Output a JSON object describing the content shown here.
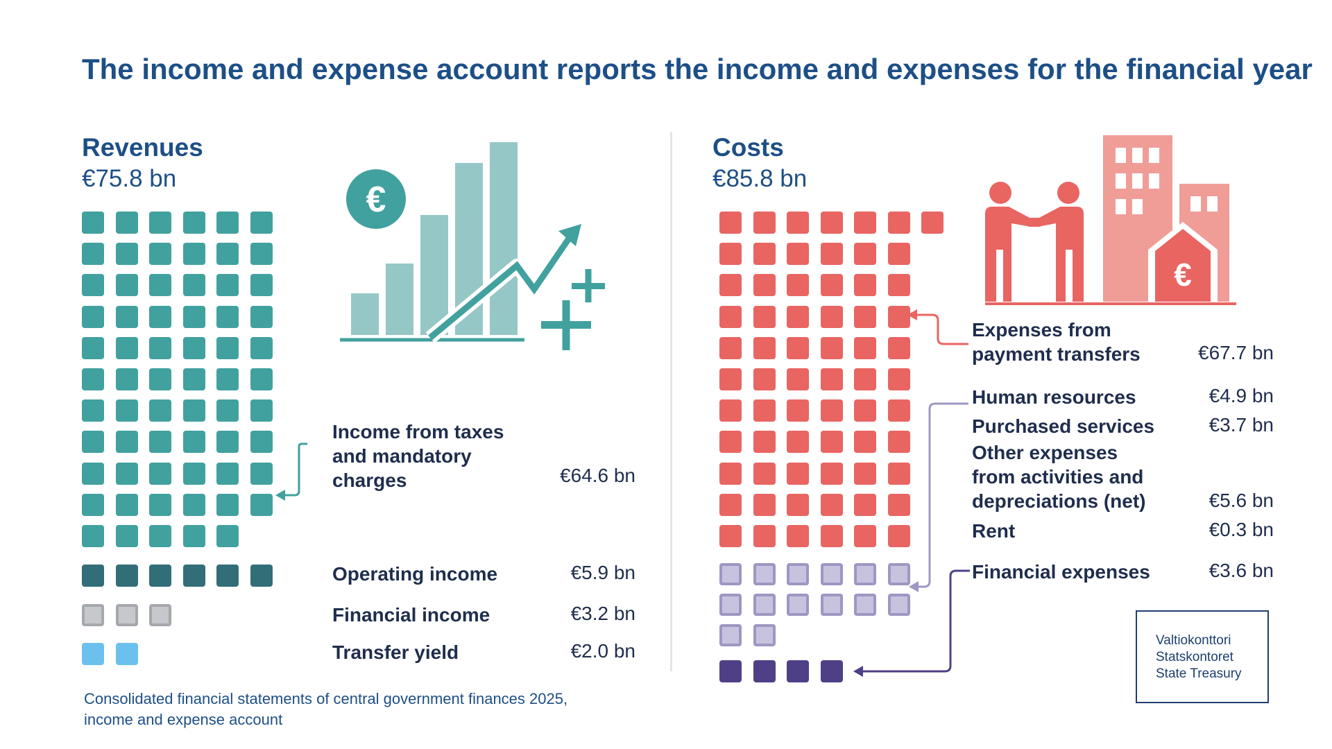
{
  "title": "The income and expense account reports the income and expenses for the financial year",
  "revenues": {
    "heading": "Revenues",
    "total": "€75.8  bn",
    "items": [
      {
        "label": "Income from taxes and mandatory charges",
        "label_lines": [
          "Income from taxes",
          "and mandatory",
          "charges"
        ],
        "value": "€64.6 bn",
        "squares": 65,
        "color": "#41a19e"
      },
      {
        "label": "Operating income",
        "value": "€5.9 bn",
        "squares": 6,
        "color": "#326e78"
      },
      {
        "label": "Financial income",
        "value": "€3.2 bn",
        "squares": 3,
        "color": "#a5a8ad"
      },
      {
        "label": "Transfer yield",
        "value": "€2.0 bn",
        "squares": 2,
        "color": "#6cc0ee"
      }
    ]
  },
  "costs": {
    "heading": "Costs",
    "total": "€85.8 bn",
    "items": [
      {
        "label": "Expenses from payment transfers",
        "label_lines": [
          "Expenses from",
          "payment transfers"
        ],
        "value": "€67.7 bn",
        "squares": 67,
        "color": "#e86562"
      },
      {
        "label": "Human resources",
        "value": "€4.9 bn",
        "color": "#b2aed0"
      },
      {
        "label": "Purchased services",
        "value": "€3.7 bn",
        "color": "#b2aed0"
      },
      {
        "label": "Other expenses from activities and depreciations (net)",
        "label_lines": [
          "Other expenses",
          "from activities and",
          "depreciations (net)"
        ],
        "value": "€5.6 bn",
        "color": "#b2aed0"
      },
      {
        "label": "Rent",
        "value": "€0.3 bn",
        "color": "#b2aed0"
      },
      {
        "label": "Financial expenses",
        "value": "€3.6 bn",
        "squares": 4,
        "color": "#4f3f86"
      }
    ],
    "combined_operating_squares": 14
  },
  "icons": {
    "revenue_illustration": "rising-bar-chart-with-euro-icon",
    "cost_illustration": "handshake-buildings-euro-icon",
    "euro_symbol": "€"
  },
  "colors": {
    "title": "#1d4f86",
    "teal": "#41a19e",
    "teal_light": "#95c7c6",
    "red": "#e86562",
    "red_light": "#f09d98",
    "purple_light": "#b2aed0",
    "purple_dark": "#4f3f86"
  },
  "footer": {
    "line1": "Consolidated financial statements of central government finances 2025,",
    "line2": "income and expense account"
  },
  "logo": {
    "line1": "Valtiokonttori",
    "line2": "Statskontoret",
    "line3": "State Treasury"
  }
}
